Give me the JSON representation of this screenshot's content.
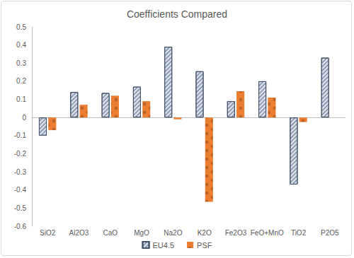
{
  "chart_data": {
    "type": "bar",
    "title": "Coefficients Compared",
    "categories": [
      "SiO2",
      "Al2O3",
      "CaO",
      "MgO",
      "Na2O",
      "K2O",
      "Fe2O3",
      "FeO+MnO",
      "TiO2",
      "P2O5"
    ],
    "series": [
      {
        "name": "EU4.5",
        "color": "#d6dce5",
        "marker": "hatched",
        "values": [
          -0.1,
          0.14,
          0.135,
          0.17,
          0.39,
          0.255,
          0.09,
          0.2,
          -0.37,
          0.33
        ]
      },
      {
        "name": "PSF",
        "color": "#ed7d31",
        "values": [
          -0.07,
          0.07,
          0.12,
          0.09,
          -0.01,
          -0.465,
          0.145,
          0.11,
          -0.025,
          0
        ]
      }
    ],
    "ylim": [
      -0.6,
      0.5
    ],
    "yticks": [
      -0.6,
      -0.5,
      -0.4,
      -0.3,
      -0.2,
      -0.1,
      0,
      0.1,
      0.2,
      0.3,
      0.4,
      0.5
    ],
    "grid": false,
    "legend": "bottom"
  }
}
